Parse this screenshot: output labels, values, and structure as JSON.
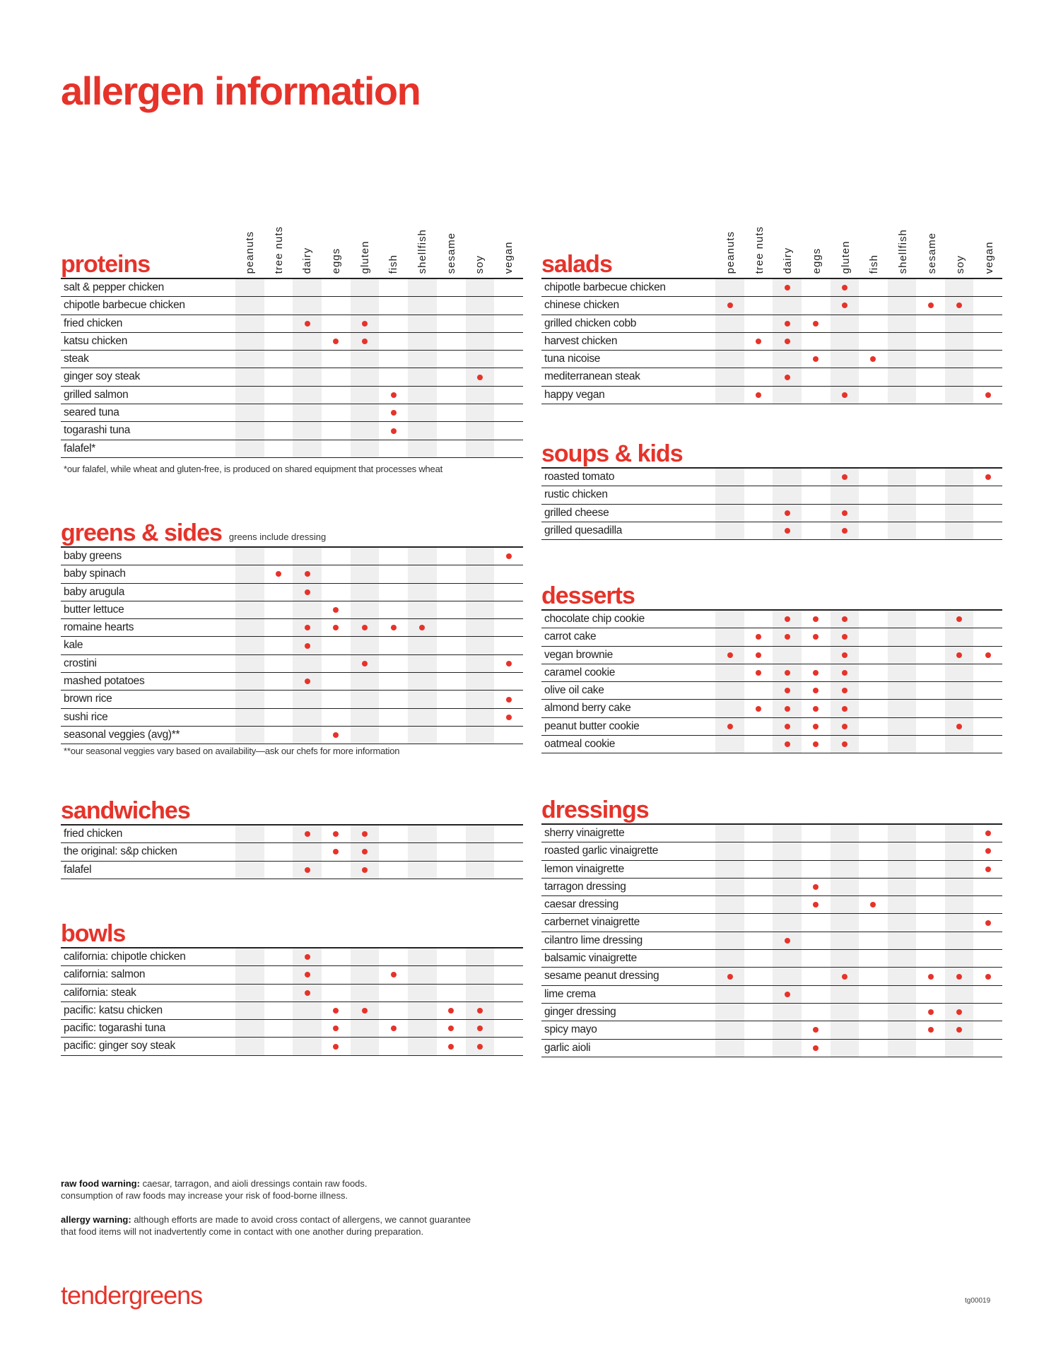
{
  "title": "allergen information",
  "accent_color": "#e6332a",
  "columns": [
    "peanuts",
    "tree nuts",
    "dairy",
    "eggs",
    "gluten",
    "fish",
    "shellfish",
    "sesame",
    "soy",
    "vegan"
  ],
  "sections": {
    "proteins": {
      "title": "proteins",
      "items": [
        {
          "name": "salt & pepper chicken",
          "allergens": []
        },
        {
          "name": "chipotle barbecue chicken",
          "allergens": []
        },
        {
          "name": "fried chicken",
          "allergens": [
            "dairy",
            "gluten"
          ]
        },
        {
          "name": "katsu chicken",
          "allergens": [
            "eggs",
            "gluten"
          ]
        },
        {
          "name": "steak",
          "allergens": []
        },
        {
          "name": "ginger soy steak",
          "allergens": [
            "soy"
          ]
        },
        {
          "name": "grilled salmon",
          "allergens": [
            "fish"
          ]
        },
        {
          "name": "seared tuna",
          "allergens": [
            "fish"
          ]
        },
        {
          "name": "togarashi tuna",
          "allergens": [
            "fish"
          ]
        },
        {
          "name": "falafel*",
          "allergens": []
        }
      ],
      "note": "*our falafel, while wheat and gluten-free, is produced on shared equipment that processes wheat"
    },
    "greens": {
      "title": "greens & sides",
      "subtitle": "greens include dressing",
      "items": [
        {
          "name": "baby greens",
          "allergens": [
            "vegan"
          ]
        },
        {
          "name": "baby spinach",
          "allergens": [
            "tree nuts",
            "dairy"
          ]
        },
        {
          "name": "baby arugula",
          "allergens": [
            "dairy"
          ]
        },
        {
          "name": "butter lettuce",
          "allergens": [
            "eggs"
          ]
        },
        {
          "name": "romaine hearts",
          "allergens": [
            "dairy",
            "eggs",
            "gluten",
            "fish",
            "shellfish"
          ]
        },
        {
          "name": "kale",
          "allergens": [
            "dairy"
          ]
        },
        {
          "name": "crostini",
          "allergens": [
            "gluten",
            "vegan"
          ]
        },
        {
          "name": "mashed potatoes",
          "allergens": [
            "dairy"
          ]
        },
        {
          "name": "brown rice",
          "allergens": [
            "vegan"
          ]
        },
        {
          "name": "sushi rice",
          "allergens": [
            "vegan"
          ]
        },
        {
          "name": "seasonal veggies (avg)**",
          "allergens": [
            "eggs"
          ]
        }
      ],
      "note": "**our seasonal veggies vary based on availability—ask our chefs for more information"
    },
    "sandwiches": {
      "title": "sandwiches",
      "items": [
        {
          "name": "fried chicken",
          "allergens": [
            "dairy",
            "eggs",
            "gluten"
          ]
        },
        {
          "name": "the original: s&p chicken",
          "allergens": [
            "eggs",
            "gluten"
          ]
        },
        {
          "name": "falafel",
          "allergens": [
            "dairy",
            "gluten"
          ]
        }
      ]
    },
    "bowls": {
      "title": "bowls",
      "items": [
        {
          "name": "california: chipotle chicken",
          "allergens": [
            "dairy"
          ]
        },
        {
          "name": "california: salmon",
          "allergens": [
            "dairy",
            "fish"
          ]
        },
        {
          "name": "california: steak",
          "allergens": [
            "dairy"
          ]
        },
        {
          "name": "pacific: katsu chicken",
          "allergens": [
            "eggs",
            "gluten",
            "sesame",
            "soy"
          ]
        },
        {
          "name": "pacific: togarashi tuna",
          "allergens": [
            "eggs",
            "fish",
            "sesame",
            "soy"
          ]
        },
        {
          "name": "pacific: ginger soy steak",
          "allergens": [
            "eggs",
            "sesame",
            "soy"
          ]
        }
      ]
    },
    "salads": {
      "title": "salads",
      "items": [
        {
          "name": "chipotle barbecue chicken",
          "allergens": [
            "dairy",
            "gluten"
          ]
        },
        {
          "name": "chinese chicken",
          "allergens": [
            "peanuts",
            "gluten",
            "sesame",
            "soy"
          ]
        },
        {
          "name": "grilled chicken cobb",
          "allergens": [
            "dairy",
            "eggs"
          ]
        },
        {
          "name": "harvest chicken",
          "allergens": [
            "tree nuts",
            "dairy"
          ]
        },
        {
          "name": "tuna nicoise",
          "allergens": [
            "eggs",
            "fish"
          ]
        },
        {
          "name": "mediterranean steak",
          "allergens": [
            "dairy"
          ]
        },
        {
          "name": "happy vegan",
          "allergens": [
            "tree nuts",
            "gluten",
            "vegan"
          ]
        }
      ]
    },
    "soups": {
      "title": "soups & kids",
      "items": [
        {
          "name": "roasted tomato",
          "allergens": [
            "gluten",
            "vegan"
          ]
        },
        {
          "name": "rustic chicken",
          "allergens": []
        },
        {
          "name": "grilled cheese",
          "allergens": [
            "dairy",
            "gluten"
          ]
        },
        {
          "name": "grilled quesadilla",
          "allergens": [
            "dairy",
            "gluten"
          ]
        }
      ]
    },
    "desserts": {
      "title": "desserts",
      "items": [
        {
          "name": "chocolate chip cookie",
          "allergens": [
            "dairy",
            "eggs",
            "gluten",
            "soy"
          ]
        },
        {
          "name": "carrot cake",
          "allergens": [
            "tree nuts",
            "dairy",
            "eggs",
            "gluten"
          ]
        },
        {
          "name": "vegan brownie",
          "allergens": [
            "peanuts",
            "tree nuts",
            "gluten",
            "soy",
            "vegan"
          ]
        },
        {
          "name": "caramel cookie",
          "allergens": [
            "tree nuts",
            "dairy",
            "eggs",
            "gluten"
          ]
        },
        {
          "name": "olive oil cake",
          "allergens": [
            "dairy",
            "eggs",
            "gluten"
          ]
        },
        {
          "name": "almond berry cake",
          "allergens": [
            "tree nuts",
            "dairy",
            "eggs",
            "gluten"
          ]
        },
        {
          "name": "peanut butter cookie",
          "allergens": [
            "peanuts",
            "dairy",
            "eggs",
            "gluten",
            "soy"
          ]
        },
        {
          "name": "oatmeal cookie",
          "allergens": [
            "dairy",
            "eggs",
            "gluten"
          ]
        }
      ]
    },
    "dressings": {
      "title": "dressings",
      "items": [
        {
          "name": "sherry vinaigrette",
          "allergens": [
            "vegan"
          ]
        },
        {
          "name": "roasted garlic vinaigrette",
          "allergens": [
            "vegan"
          ]
        },
        {
          "name": "lemon vinaigrette",
          "allergens": [
            "vegan"
          ]
        },
        {
          "name": "tarragon dressing",
          "allergens": [
            "eggs"
          ]
        },
        {
          "name": "caesar dressing",
          "allergens": [
            "eggs",
            "fish"
          ]
        },
        {
          "name": "carbernet vinaigrette",
          "allergens": [
            "vegan"
          ]
        },
        {
          "name": "cilantro lime dressing",
          "allergens": [
            "dairy"
          ]
        },
        {
          "name": "balsamic vinaigrette",
          "allergens": []
        },
        {
          "name": "sesame peanut dressing",
          "allergens": [
            "peanuts",
            "gluten",
            "sesame",
            "soy",
            "vegan"
          ]
        },
        {
          "name": "lime crema",
          "allergens": [
            "dairy"
          ]
        },
        {
          "name": "ginger dressing",
          "allergens": [
            "sesame",
            "soy"
          ]
        },
        {
          "name": "spicy mayo",
          "allergens": [
            "eggs",
            "sesame",
            "soy"
          ]
        },
        {
          "name": "garlic aioli",
          "allergens": [
            "eggs"
          ]
        }
      ]
    }
  },
  "warnings": {
    "raw_label": "raw food warning:",
    "raw_text": " caesar, tarragon, and aioli dressings contain raw foods.",
    "raw_text2": "consumption of raw foods may increase your risk of food-borne illness.",
    "allergy_label": "allergy warning:",
    "allergy_text": " although efforts are made to avoid cross contact of allergens, we cannot guarantee",
    "allergy_text2": "that food items will not inadvertently come in contact with one another during preparation."
  },
  "brand": "tendergreens",
  "code": "tg00019"
}
